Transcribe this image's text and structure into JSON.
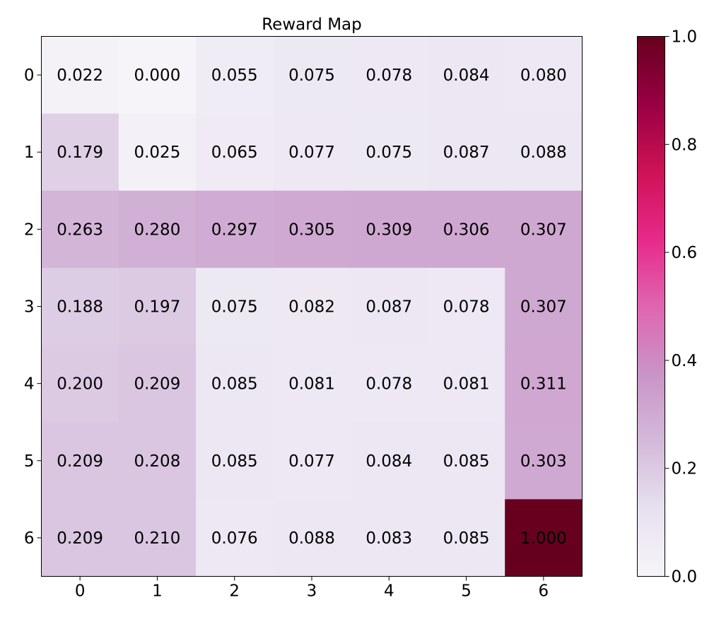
{
  "chart_data": {
    "type": "heatmap",
    "title": "Reward Map",
    "xlabel": "",
    "ylabel": "",
    "x_ticks": [
      "0",
      "1",
      "2",
      "3",
      "4",
      "5",
      "6"
    ],
    "y_ticks": [
      "0",
      "1",
      "2",
      "3",
      "4",
      "5",
      "6"
    ],
    "values": [
      [
        0.022,
        0.0,
        0.055,
        0.075,
        0.078,
        0.084,
        0.08
      ],
      [
        0.179,
        0.025,
        0.065,
        0.077,
        0.075,
        0.087,
        0.088
      ],
      [
        0.263,
        0.28,
        0.297,
        0.305,
        0.309,
        0.306,
        0.307
      ],
      [
        0.188,
        0.197,
        0.075,
        0.082,
        0.087,
        0.078,
        0.307
      ],
      [
        0.2,
        0.209,
        0.085,
        0.081,
        0.078,
        0.081,
        0.311
      ],
      [
        0.209,
        0.208,
        0.085,
        0.077,
        0.084,
        0.085,
        0.303
      ],
      [
        0.209,
        0.21,
        0.076,
        0.088,
        0.083,
        0.085,
        1.0
      ]
    ],
    "value_labels": [
      [
        "0.022",
        "0.000",
        "0.055",
        "0.075",
        "0.078",
        "0.084",
        "0.080"
      ],
      [
        "0.179",
        "0.025",
        "0.065",
        "0.077",
        "0.075",
        "0.087",
        "0.088"
      ],
      [
        "0.263",
        "0.280",
        "0.297",
        "0.305",
        "0.309",
        "0.306",
        "0.307"
      ],
      [
        "0.188",
        "0.197",
        "0.075",
        "0.082",
        "0.087",
        "0.078",
        "0.307"
      ],
      [
        "0.200",
        "0.209",
        "0.085",
        "0.081",
        "0.078",
        "0.081",
        "0.311"
      ],
      [
        "0.209",
        "0.208",
        "0.085",
        "0.077",
        "0.084",
        "0.085",
        "0.303"
      ],
      [
        "0.209",
        "0.210",
        "0.076",
        "0.088",
        "0.083",
        "0.085",
        "1.000"
      ]
    ],
    "colorbar": {
      "range": [
        0.0,
        1.0
      ],
      "ticks": [
        0.0,
        0.2,
        0.4,
        0.6,
        0.8,
        1.0
      ],
      "tick_labels": [
        "0.0",
        "0.2",
        "0.4",
        "0.6",
        "0.8",
        "1.0"
      ],
      "colormap": "PuRd",
      "colormap_stops": [
        "#f7f4f9",
        "#e7e1ef",
        "#d4b9da",
        "#c994c7",
        "#df65b0",
        "#e7298a",
        "#ce1256",
        "#980043",
        "#67001f"
      ]
    },
    "grid": false,
    "legend": "none"
  }
}
